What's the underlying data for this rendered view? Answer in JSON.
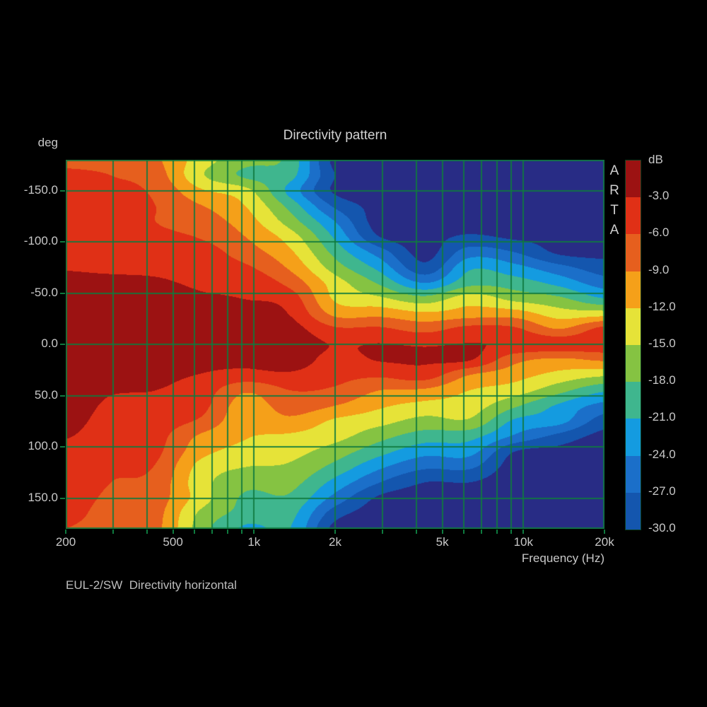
{
  "title": "Directivity pattern",
  "y_axis_unit": "deg",
  "x_axis_label": "Frequency (Hz)",
  "footer": "EUL-2/SW  Directivity horizontal",
  "watermark": "ARTA",
  "colors": {
    "background": "#000000",
    "grid": "#0e7a3e",
    "text": "#c8c8c8"
  },
  "chart_data": {
    "type": "heatmap",
    "title": "Directivity pattern",
    "xlabel": "Frequency (Hz)",
    "ylabel": "deg",
    "x_scale": "log",
    "x_range": [
      200,
      20000
    ],
    "y_range": [
      -180,
      180
    ],
    "grid": true,
    "x_tick_labels": [
      {
        "value": 200,
        "label": "200"
      },
      {
        "value": 500,
        "label": "500"
      },
      {
        "value": 1000,
        "label": "1k"
      },
      {
        "value": 2000,
        "label": "2k"
      },
      {
        "value": 5000,
        "label": "5k"
      },
      {
        "value": 10000,
        "label": "10k"
      },
      {
        "value": 20000,
        "label": "20k"
      }
    ],
    "x_axis_ticks": [
      200,
      300,
      400,
      500,
      600,
      700,
      800,
      900,
      1000,
      2000,
      3000,
      4000,
      5000,
      6000,
      7000,
      8000,
      9000,
      10000,
      20000
    ],
    "x_gridlines": [
      300,
      400,
      500,
      600,
      700,
      800,
      900,
      1000,
      2000,
      3000,
      4000,
      5000,
      6000,
      7000,
      8000,
      9000,
      10000
    ],
    "y_tick_labels": [
      {
        "value": -150,
        "label": "-150.0"
      },
      {
        "value": -100,
        "label": "-100.0"
      },
      {
        "value": -50,
        "label": "-50.0"
      },
      {
        "value": 0,
        "label": "0.0"
      },
      {
        "value": 50,
        "label": "50.0"
      },
      {
        "value": 100,
        "label": "100.0"
      },
      {
        "value": 150,
        "label": "150.0"
      }
    ],
    "y_gridlines": [
      -150,
      -100,
      -50,
      0,
      50,
      100,
      150
    ],
    "colorbar": {
      "label": "dB",
      "band_step_db": 3,
      "tick_labels": [
        "-3.0",
        "-6.0",
        "-9.0",
        "-12.0",
        "-15.0",
        "-18.0",
        "-21.0",
        "-24.0",
        "-27.0",
        "-30.0"
      ],
      "segments": [
        "#9c1212",
        "#e03016",
        "#e65f1e",
        "#f5a019",
        "#e6e338",
        "#85c342",
        "#3fb68e",
        "#149be0",
        "#1b6fc9",
        "#1456ae"
      ],
      "below_range_color": "#282c85"
    },
    "frequencies_hz": [
      200,
      300,
      430,
      630,
      930,
      1360,
      2000,
      2930,
      4300,
      6300,
      9250,
      13600,
      20000
    ],
    "angles_deg": [
      -180,
      -165,
      -150,
      -135,
      -120,
      -105,
      -90,
      -75,
      -60,
      -45,
      -30,
      -15,
      0,
      15,
      30,
      45,
      60,
      75,
      90,
      105,
      120,
      135,
      150,
      165,
      180
    ],
    "values_db": [
      [
        -6.5,
        -7.0,
        -8.5,
        -13.5,
        -17.0,
        -19.0,
        -31.0,
        -31.5,
        -32.0,
        -32.0,
        -32.0,
        -32.0,
        -32.0
      ],
      [
        -5.5,
        -6.0,
        -7.5,
        -14.5,
        -18.5,
        -20.0,
        -30.0,
        -31.5,
        -32.0,
        -32.0,
        -32.0,
        -32.0,
        -32.0
      ],
      [
        -5.0,
        -5.5,
        -6.5,
        -11.5,
        -14.0,
        -22.0,
        -30.5,
        -31.5,
        -32.0,
        -32.0,
        -32.0,
        -32.0,
        -32.0
      ],
      [
        -5.0,
        -5.5,
        -6.0,
        -8.8,
        -12.0,
        -19.0,
        -27.5,
        -31.0,
        -31.0,
        -31.5,
        -32.0,
        -32.0,
        -32.0
      ],
      [
        -5.0,
        -5.5,
        -6.0,
        -7.5,
        -10.5,
        -16.5,
        -24.0,
        -31.5,
        -31.5,
        -31.5,
        -31.5,
        -32.0,
        -32.0
      ],
      [
        -4.8,
        -5.2,
        -5.5,
        -6.2,
        -9.0,
        -13.5,
        -21.5,
        -30.0,
        -31.0,
        -29.5,
        -30.5,
        -31.0,
        -32.0
      ],
      [
        -4.2,
        -4.8,
        -5.0,
        -4.8,
        -7.5,
        -11.5,
        -19.0,
        -25.5,
        -31.0,
        -25.5,
        -27.0,
        -30.5,
        -31.0
      ],
      [
        -3.2,
        -3.6,
        -3.8,
        -4.5,
        -5.5,
        -9.5,
        -16.5,
        -22.0,
        -29.0,
        -21.5,
        -23.0,
        -26.0,
        -28.5
      ],
      [
        -2.2,
        -2.2,
        -2.5,
        -3.5,
        -3.8,
        -7.0,
        -13.5,
        -18.5,
        -24.0,
        -19.0,
        -19.5,
        -22.0,
        -25.5
      ],
      [
        -1.2,
        -1.2,
        -1.5,
        -2.5,
        -3.1,
        -4.5,
        -12.5,
        -14.5,
        -17.0,
        -13.5,
        -16.0,
        -17.5,
        -21.0
      ],
      [
        -0.8,
        -0.8,
        -1.0,
        -1.0,
        -1.2,
        -3.2,
        -9.8,
        -10.0,
        -11.5,
        -10.5,
        -10.5,
        -13.5,
        -13.5
      ],
      [
        -0.8,
        -0.8,
        -0.8,
        -0.8,
        -0.8,
        -1.8,
        -5.5,
        -5.5,
        -7.0,
        -5.0,
        -5.5,
        -9.0,
        -5.0
      ],
      [
        -0.8,
        -0.8,
        -0.8,
        -0.8,
        -1.2,
        -1.3,
        -3.2,
        -2.9,
        -3.3,
        -2.9,
        -3.4,
        -4.2,
        -4.0
      ],
      [
        -0.8,
        -0.8,
        -0.8,
        -2.0,
        -2.2,
        -1.5,
        -4.0,
        -2.8,
        -2.7,
        -2.8,
        -8.0,
        -9.5,
        -8.5
      ],
      [
        -0.8,
        -0.8,
        -2.2,
        -3.1,
        -4.0,
        -3.5,
        -5.0,
        -5.5,
        -4.5,
        -9.0,
        -10.8,
        -13.0,
        -14.5
      ],
      [
        -1.0,
        -2.6,
        -3.0,
        -4.3,
        -8.5,
        -6.0,
        -6.5,
        -9.0,
        -9.5,
        -12.0,
        -13.5,
        -17.0,
        -20.5
      ],
      [
        -1.2,
        -3.6,
        -4.0,
        -5.0,
        -10.5,
        -7.5,
        -9.0,
        -11.5,
        -13.0,
        -13.5,
        -17.5,
        -21.5,
        -25.0
      ],
      [
        -1.8,
        -4.3,
        -4.6,
        -6.5,
        -11.2,
        -9.8,
        -12.5,
        -14.0,
        -16.0,
        -15.5,
        -21.5,
        -23.0,
        -28.5
      ],
      [
        -2.8,
        -4.8,
        -5.0,
        -9.5,
        -11.8,
        -12.5,
        -14.0,
        -17.0,
        -19.5,
        -20.0,
        -24.5,
        -28.0,
        -31.0
      ],
      [
        -4.0,
        -5.2,
        -5.4,
        -11.0,
        -13.0,
        -14.0,
        -16.5,
        -20.0,
        -23.0,
        -23.0,
        -30.0,
        -31.0,
        -32.0
      ],
      [
        -4.3,
        -5.6,
        -6.2,
        -13.0,
        -15.0,
        -15.5,
        -19.0,
        -23.5,
        -26.5,
        -26.5,
        -31.5,
        -32.0,
        -32.0
      ],
      [
        -4.5,
        -6.0,
        -7.0,
        -13.8,
        -17.0,
        -17.0,
        -22.0,
        -27.0,
        -30.0,
        -30.0,
        -32.0,
        -32.0,
        -32.0
      ],
      [
        -4.8,
        -6.5,
        -7.5,
        -13.5,
        -18.5,
        -18.5,
        -25.0,
        -30.5,
        -31.5,
        -31.5,
        -32.0,
        -32.0,
        -32.0
      ],
      [
        -5.2,
        -7.0,
        -8.0,
        -15.5,
        -19.0,
        -20.0,
        -28.5,
        -31.5,
        -32.0,
        -32.0,
        -32.0,
        -32.0,
        -32.0
      ],
      [
        -6.0,
        -7.0,
        -8.2,
        -16.5,
        -21.5,
        -21.0,
        -31.0,
        -32.0,
        -32.0,
        -32.0,
        -32.0,
        -32.0,
        -32.0
      ]
    ]
  }
}
